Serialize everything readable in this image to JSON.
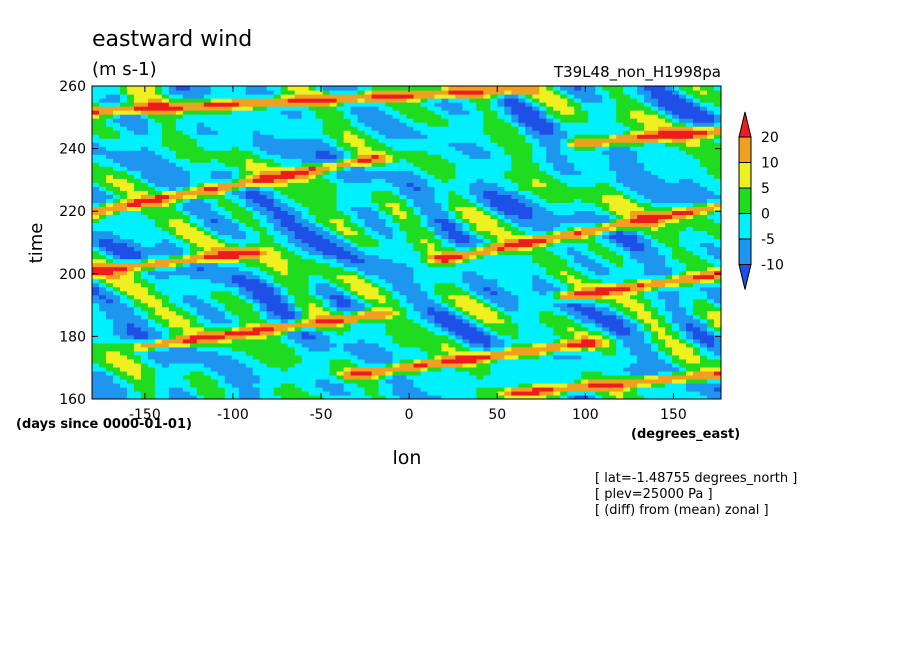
{
  "chart_data": {
    "type": "heatmap",
    "title": "eastward wind",
    "units": "(m s-1)",
    "run_label": "T39L48_non_H1998pa",
    "xlabel": "lon",
    "xunits": "(degrees_east)",
    "ylabel": "time",
    "yunits": "(days since 0000-01-01)",
    "xlim": [
      -180,
      177
    ],
    "ylim": [
      160,
      260
    ],
    "x_ticks": [
      {
        "v": -150,
        "label": "-150"
      },
      {
        "v": -100,
        "label": "-100"
      },
      {
        "v": -50,
        "label": "-50"
      },
      {
        "v": 0,
        "label": "0"
      },
      {
        "v": 50,
        "label": "50"
      },
      {
        "v": 100,
        "label": "100"
      },
      {
        "v": 150,
        "label": "150"
      }
    ],
    "y_ticks": [
      {
        "v": 160,
        "label": "160"
      },
      {
        "v": 180,
        "label": "180"
      },
      {
        "v": 200,
        "label": "200"
      },
      {
        "v": 220,
        "label": "220"
      },
      {
        "v": 240,
        "label": "240"
      },
      {
        "v": 260,
        "label": "260"
      }
    ],
    "levels": [
      {
        "v": -10,
        "label": "-10"
      },
      {
        "v": -5,
        "label": "-5"
      },
      {
        "v": 0,
        "label": "0"
      },
      {
        "v": 5,
        "label": "5"
      },
      {
        "v": 10,
        "label": "10"
      },
      {
        "v": 20,
        "label": "20"
      }
    ],
    "colors": {
      "below_min": "#1e4fe6",
      "b1": "#1e96f0",
      "b2": "#00f0ff",
      "b3": "#20dc20",
      "b4": "#f0f020",
      "b5": "#f0a020",
      "above_max": "#ee1c1c"
    },
    "annotations": [
      "[ lat=-1.48755 degrees_north ]",
      "[ plev=25000 Pa ]",
      "[ (diff) from (mean) zonal ]"
    ],
    "strong_eastward_streaks": [
      {
        "from": [
          -180,
          220
        ],
        "to": [
          -20,
          237
        ]
      },
      {
        "from": [
          -180,
          201
        ],
        "to": [
          -90,
          207
        ]
      },
      {
        "from": [
          -150,
          177
        ],
        "to": [
          -20,
          187
        ]
      },
      {
        "from": [
          -30,
          168
        ],
        "to": [
          100,
          178
        ]
      },
      {
        "from": [
          60,
          162
        ],
        "to": [
          177,
          168
        ]
      },
      {
        "from": [
          90,
          193
        ],
        "to": [
          177,
          200
        ]
      },
      {
        "from": [
          20,
          205
        ],
        "to": [
          177,
          222
        ]
      },
      {
        "from": [
          -180,
          252
        ],
        "to": [
          60,
          259
        ]
      },
      {
        "from": [
          100,
          242
        ],
        "to": [
          177,
          246
        ]
      }
    ]
  }
}
